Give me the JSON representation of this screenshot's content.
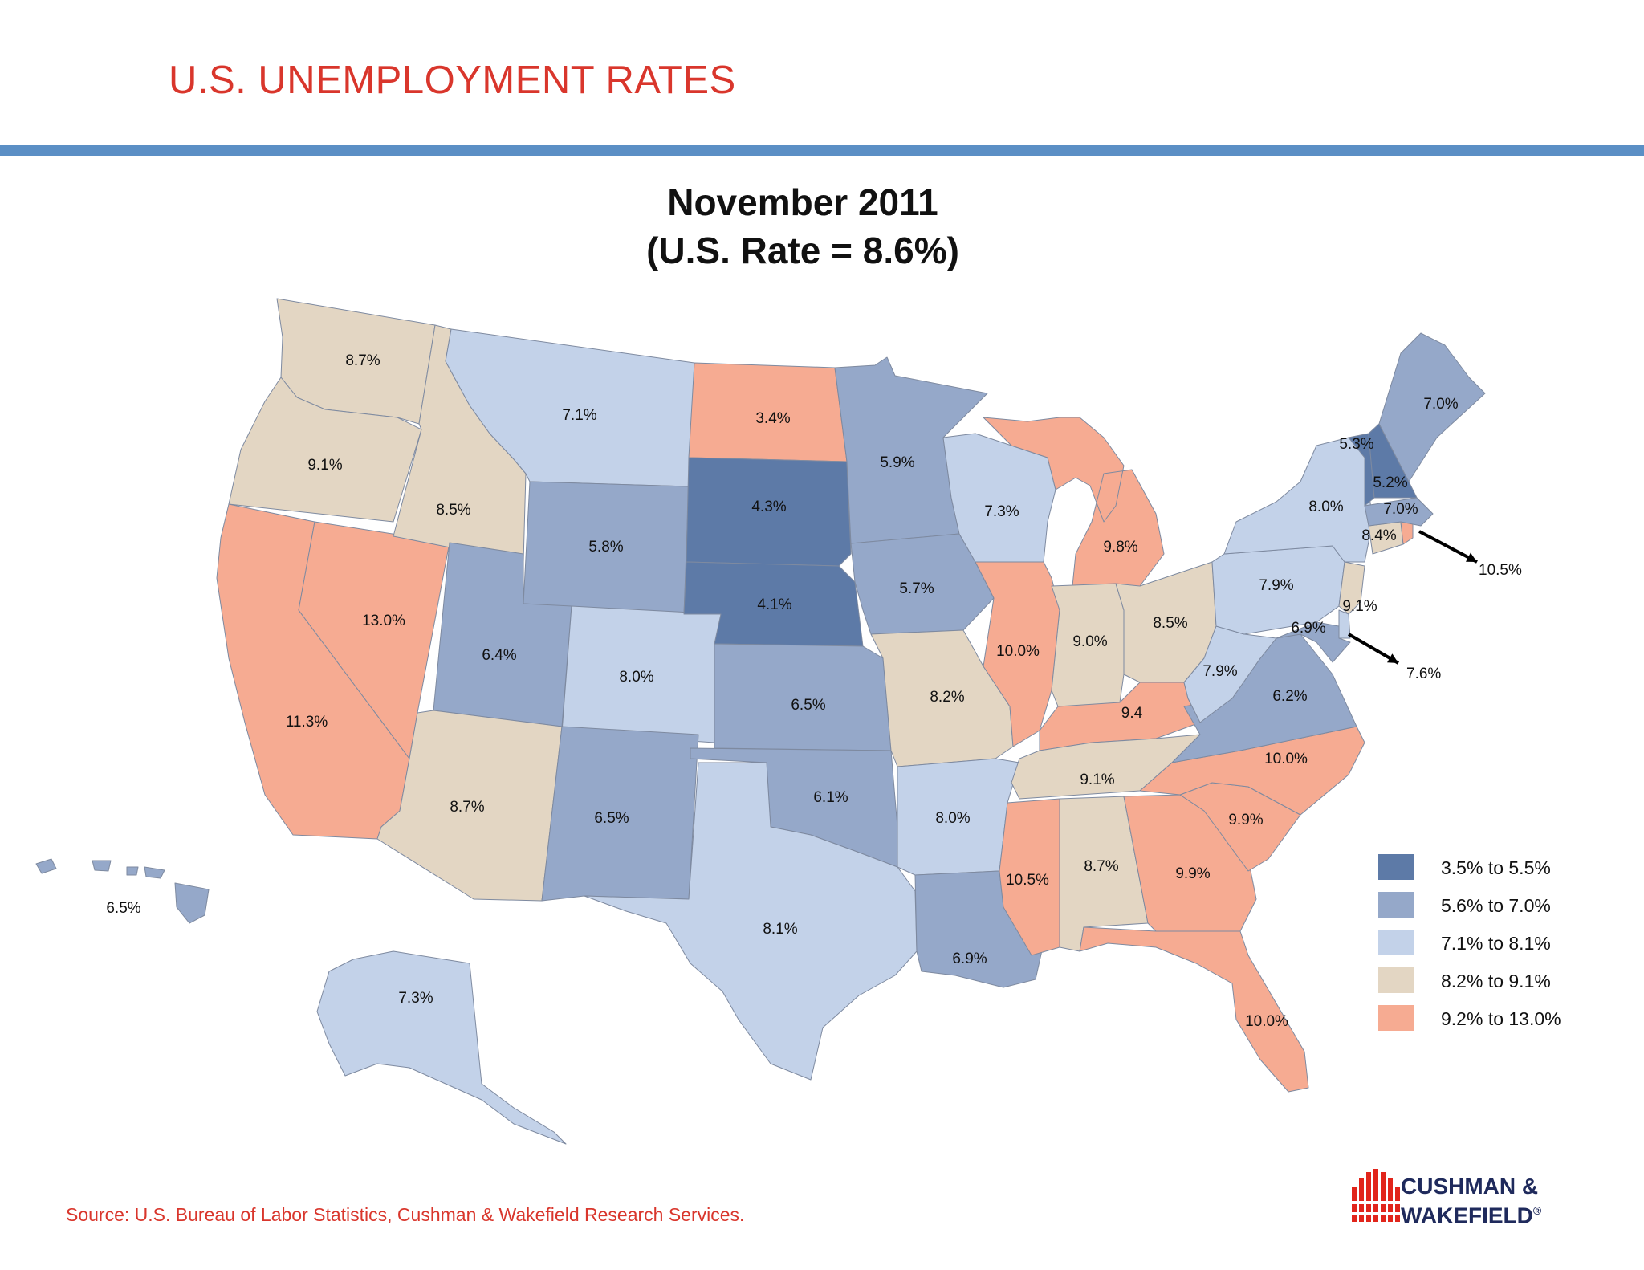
{
  "page": {
    "heading": "U.S. UNEMPLOYMENT RATES",
    "title_line1": "November 2011",
    "title_line2": "(U.S. Rate = 8.6%)",
    "source": "Source:  U.S. Bureau of Labor Statistics, Cushman & Wakefield Research Services.",
    "logo_line1": "CUSHMAN &",
    "logo_line2": "WAKEFIELD",
    "logo_reg": "®"
  },
  "colors": {
    "accent_red": "#d9362c",
    "rule_blue": "#5b8fc5",
    "border": "#ffffff"
  },
  "legend": [
    {
      "label": "3.5% to 5.5%",
      "color": "#5d7aa7"
    },
    {
      "label": "5.6% to 7.0%",
      "color": "#95a8c9"
    },
    {
      "label": "7.1% to 8.1%",
      "color": "#c3d2e9"
    },
    {
      "label": "8.2% to 9.1%",
      "color": "#e3d6c3"
    },
    {
      "label": "9.2% to 13.0%",
      "color": "#f6ab92"
    }
  ],
  "chart_data": {
    "type": "choropleth",
    "bins": [
      {
        "label": "3.5% to 5.5%",
        "min": 3.5,
        "max": 5.5
      },
      {
        "label": "5.6% to 7.0%",
        "min": 5.6,
        "max": 7.0
      },
      {
        "label": "7.1% to 8.1%",
        "min": 7.1,
        "max": 8.1
      },
      {
        "label": "8.2% to 9.1%",
        "min": 8.2,
        "max": 9.1
      },
      {
        "label": "9.2% to 13.0%",
        "min": 9.2,
        "max": 13.0
      }
    ],
    "states": [
      {
        "state": "WA",
        "rate": 8.7,
        "label": "8.7%"
      },
      {
        "state": "OR",
        "rate": 9.1,
        "label": "9.1%"
      },
      {
        "state": "CA",
        "rate": 11.3,
        "label": "11.3%"
      },
      {
        "state": "NV",
        "rate": 13.0,
        "label": "13.0%"
      },
      {
        "state": "ID",
        "rate": 8.5,
        "label": "8.5%"
      },
      {
        "state": "MT",
        "rate": 7.1,
        "label": "7.1%"
      },
      {
        "state": "WY",
        "rate": 5.8,
        "label": "5.8%"
      },
      {
        "state": "UT",
        "rate": 6.4,
        "label": "6.4%"
      },
      {
        "state": "AZ",
        "rate": 8.7,
        "label": "8.7%"
      },
      {
        "state": "CO",
        "rate": 8.0,
        "label": "8.0%"
      },
      {
        "state": "NM",
        "rate": 6.5,
        "label": "6.5%"
      },
      {
        "state": "ND",
        "rate": 3.4,
        "label": "3.4%"
      },
      {
        "state": "SD",
        "rate": 4.3,
        "label": "4.3%"
      },
      {
        "state": "NE",
        "rate": 4.1,
        "label": "4.1%"
      },
      {
        "state": "KS",
        "rate": 6.5,
        "label": "6.5%"
      },
      {
        "state": "OK",
        "rate": 6.1,
        "label": "6.1%"
      },
      {
        "state": "TX",
        "rate": 8.1,
        "label": "8.1%"
      },
      {
        "state": "MN",
        "rate": 5.9,
        "label": "5.9%"
      },
      {
        "state": "IA",
        "rate": 5.7,
        "label": "5.7%"
      },
      {
        "state": "MO",
        "rate": 8.2,
        "label": "8.2%"
      },
      {
        "state": "AR",
        "rate": 8.0,
        "label": "8.0%"
      },
      {
        "state": "LA",
        "rate": 6.9,
        "label": "6.9%"
      },
      {
        "state": "WI",
        "rate": 7.3,
        "label": "7.3%"
      },
      {
        "state": "IL",
        "rate": 10.0,
        "label": "10.0%"
      },
      {
        "state": "MI",
        "rate": 9.8,
        "label": "9.8%"
      },
      {
        "state": "IN",
        "rate": 9.0,
        "label": "9.0%"
      },
      {
        "state": "OH",
        "rate": 8.5,
        "label": "8.5%"
      },
      {
        "state": "KY",
        "rate": 9.4,
        "label": "9.4"
      },
      {
        "state": "TN",
        "rate": 9.1,
        "label": "9.1%"
      },
      {
        "state": "MS",
        "rate": 10.5,
        "label": "10.5%"
      },
      {
        "state": "AL",
        "rate": 8.7,
        "label": "8.7%"
      },
      {
        "state": "GA",
        "rate": 9.9,
        "label": "9.9%"
      },
      {
        "state": "FL",
        "rate": 10.0,
        "label": "10.0%"
      },
      {
        "state": "SC",
        "rate": 9.9,
        "label": "9.9%"
      },
      {
        "state": "NC",
        "rate": 10.0,
        "label": "10.0%"
      },
      {
        "state": "VA",
        "rate": 6.2,
        "label": "6.2%"
      },
      {
        "state": "WV",
        "rate": 7.9,
        "label": "7.9%"
      },
      {
        "state": "PA",
        "rate": 7.9,
        "label": "7.9%"
      },
      {
        "state": "NY",
        "rate": 8.0,
        "label": "8.0%"
      },
      {
        "state": "NJ",
        "rate": 9.1,
        "label": "9.1%"
      },
      {
        "state": "DE",
        "rate": 7.6,
        "label": "7.6%"
      },
      {
        "state": "MD",
        "rate": 6.9,
        "label": "6.9%"
      },
      {
        "state": "CT",
        "rate": 8.4,
        "label": "8.4%"
      },
      {
        "state": "RI",
        "rate": 10.5,
        "label": "10.5%"
      },
      {
        "state": "MA",
        "rate": 7.0,
        "label": "7.0%"
      },
      {
        "state": "VT",
        "rate": 5.3,
        "label": "5.3%"
      },
      {
        "state": "NH",
        "rate": 5.2,
        "label": "5.2%"
      },
      {
        "state": "ME",
        "rate": 7.0,
        "label": "7.0%"
      },
      {
        "state": "AK",
        "rate": 7.3,
        "label": "7.3%"
      },
      {
        "state": "HI",
        "rate": 6.5,
        "label": "6.5%"
      }
    ]
  }
}
